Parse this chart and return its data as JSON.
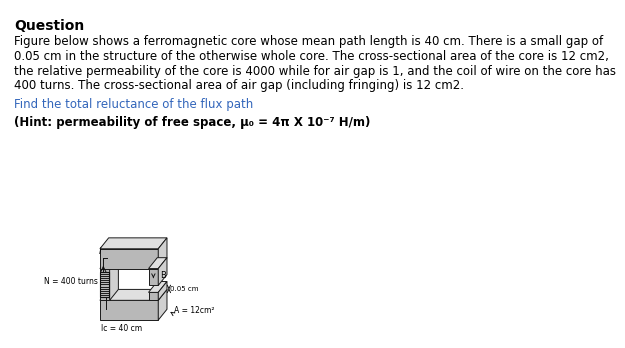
{
  "title": "Question",
  "body_lines": [
    "Figure below shows a ferromagnetic core whose mean path length is 40 cm. There is a small gap of",
    "0.05 cm in the structure of the otherwise whole core. The cross-sectional area of the core is 12 cm2,",
    "the relative permeability of the core is 4000 while for air gap is 1, and the coil of wire on the core has",
    "400 turns. The cross-sectional area of air gap (including fringing) is 12 cm2."
  ],
  "question_text": "Find the total reluctance of the flux path",
  "hint_text": "(Hint: permeability of free space, μ₀ = 4π X 10⁻⁷ H/m)",
  "background_color": "#ffffff",
  "title_color": "#000000",
  "body_color": "#000000",
  "question_color": "#3366bb",
  "hint_color": "#000000",
  "title_fontsize": 10,
  "body_fontsize": 8.5,
  "question_fontsize": 8.5,
  "hint_fontsize": 8.5,
  "N_turns_label": "N = 400 turns",
  "lc_label": "lc = 40 cm",
  "gap_label": "0.05 cm",
  "area_label": "A = 12cm²",
  "B_label": "B",
  "i_label": "i"
}
